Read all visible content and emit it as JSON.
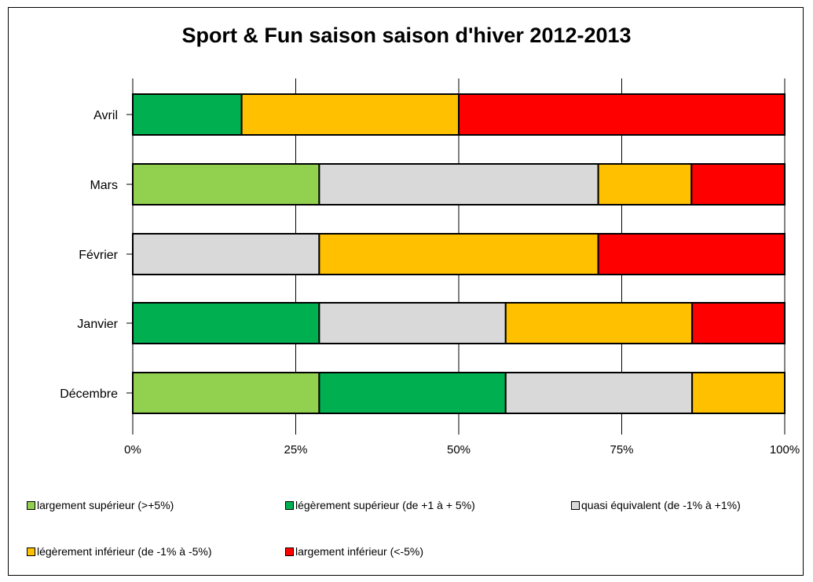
{
  "chart_data": {
    "type": "bar",
    "orientation": "horizontal",
    "stacked": "percent",
    "title": "Sport & Fun saison saison d'hiver 2012-2013",
    "categories": [
      "Avril",
      "Mars",
      "Février",
      "Janvier",
      "Décembre"
    ],
    "x_ticks": [
      "0%",
      "25%",
      "50%",
      "75%",
      "100%"
    ],
    "xlim": [
      0,
      100
    ],
    "grid": "vertical",
    "legend_position": "bottom",
    "series": [
      {
        "name": "largement supérieur (>+5%)",
        "color": "#92d050",
        "values": [
          0,
          28.6,
          0,
          0,
          28.6
        ]
      },
      {
        "name": "légèrement supérieur (de +1 à + 5%)",
        "color": "#00b050",
        "values": [
          16.7,
          0,
          0,
          28.6,
          28.6
        ]
      },
      {
        "name": "quasi équivalent (de -1% à +1%)",
        "color": "#d9d9d9",
        "values": [
          0,
          42.8,
          28.6,
          28.6,
          28.6
        ]
      },
      {
        "name": "légèrement inférieur (de -1% à -5%)",
        "color": "#ffc000",
        "values": [
          33.3,
          14.3,
          42.8,
          28.6,
          14.2
        ]
      },
      {
        "name": "largement inférieur (<-5%)",
        "color": "#ff0000",
        "values": [
          50,
          14.3,
          28.6,
          14.2,
          0
        ]
      }
    ]
  }
}
